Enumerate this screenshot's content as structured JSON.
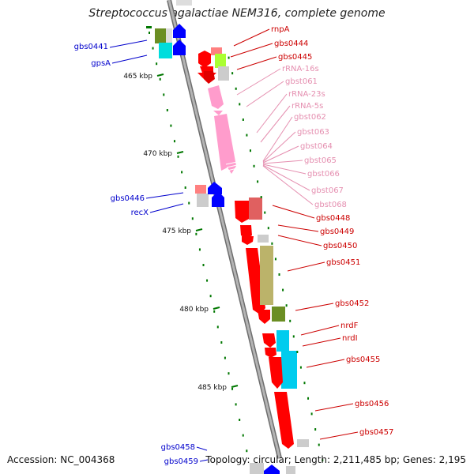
{
  "title": "Streptococcus agalactiae NEM316, complete genome",
  "footer": {
    "accession": "Accession: NC_004368",
    "topology": "Topology: circular; Length: 2,211,485 bp; Genes: 2,195"
  },
  "scale_unit": "kbp",
  "ticks": [
    {
      "label": "465 kbp",
      "kbp": 465
    },
    {
      "label": "470 kbp",
      "kbp": 470
    },
    {
      "label": "475 kbp",
      "kbp": 475
    },
    {
      "label": "480 kbp",
      "kbp": 480
    },
    {
      "label": "485 kbp",
      "kbp": 485
    }
  ],
  "left_labels": [
    "gbs0441",
    "gpsA",
    "gbs0446",
    "recX",
    "gbs0458",
    "gbs0459"
  ],
  "right_labels_dark": [
    "rnpA",
    "gbs0444",
    "gbs0445",
    "gbs0448",
    "gbs0449",
    "gbs0450",
    "gbs0451",
    "gbs0452",
    "nrdF",
    "nrdI",
    "gbs0455",
    "gbs0456",
    "gbs0457"
  ],
  "right_labels_pink": [
    "rRNA-16s",
    "gbst061",
    "rRNA-23s",
    "rRNA-5s",
    "gbst062",
    "gbst063",
    "gbst064",
    "gbst065",
    "gbst066",
    "gbst067",
    "gbst068"
  ],
  "colors": {
    "backbone": "#9a9a9a",
    "label_blue": "#0000cc",
    "label_red": "#cc0000",
    "label_pink": "#e58fb0",
    "gene_red": "#ff0000",
    "gene_blue": "#0000ff",
    "rrna_pink": "#ff9ccc",
    "tick_green": "#007700"
  }
}
